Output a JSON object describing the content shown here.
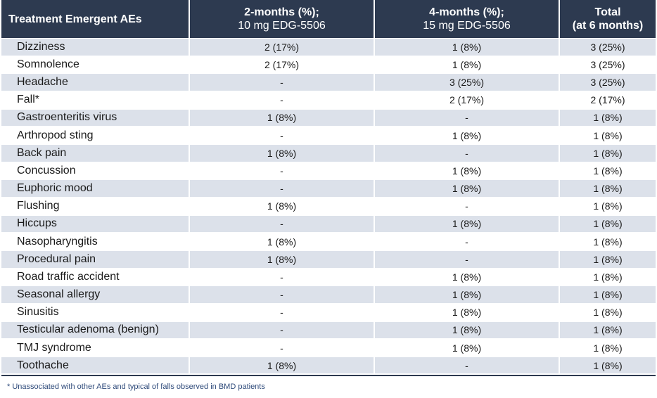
{
  "table": {
    "columns": [
      [
        "Treatment Emergent AEs"
      ],
      [
        "2-months (%);",
        "10 mg EDG-5506"
      ],
      [
        "4-months (%);",
        "15 mg EDG-5506"
      ],
      [
        "Total",
        "(at 6 months)"
      ]
    ],
    "rows": [
      [
        "Dizziness",
        "2 (17%)",
        "1 (8%)",
        "3 (25%)"
      ],
      [
        "Somnolence",
        "2 (17%)",
        "1 (8%)",
        "3 (25%)"
      ],
      [
        "Headache",
        "-",
        "3 (25%)",
        "3 (25%)"
      ],
      [
        "Fall*",
        "-",
        "2 (17%)",
        "2 (17%)"
      ],
      [
        "Gastroenteritis virus",
        "1 (8%)",
        "-",
        "1 (8%)"
      ],
      [
        "Arthropod sting",
        "-",
        "1 (8%)",
        "1 (8%)"
      ],
      [
        "Back pain",
        "1 (8%)",
        "-",
        "1 (8%)"
      ],
      [
        "Concussion",
        "-",
        "1 (8%)",
        "1 (8%)"
      ],
      [
        "Euphoric mood",
        "-",
        "1 (8%)",
        "1 (8%)"
      ],
      [
        "Flushing",
        "1 (8%)",
        "-",
        "1 (8%)"
      ],
      [
        "Hiccups",
        "-",
        "1 (8%)",
        "1 (8%)"
      ],
      [
        "Nasopharyngitis",
        "1 (8%)",
        "-",
        "1 (8%)"
      ],
      [
        "Procedural pain",
        "1 (8%)",
        "-",
        "1 (8%)"
      ],
      [
        "Road traffic accident",
        "-",
        "1 (8%)",
        "1 (8%)"
      ],
      [
        "Seasonal allergy",
        "-",
        "1 (8%)",
        "1 (8%)"
      ],
      [
        "Sinusitis",
        "-",
        "1 (8%)",
        "1 (8%)"
      ],
      [
        "Testicular adenoma (benign)",
        "-",
        "1 (8%)",
        "1 (8%)"
      ],
      [
        "TMJ syndrome",
        "-",
        "1 (8%)",
        "1 (8%)"
      ],
      [
        "Toothache",
        "1 (8%)",
        "-",
        "1 (8%)"
      ]
    ],
    "footnote": "* Unassociated with other AEs and typical of falls observed in BMD patients"
  }
}
